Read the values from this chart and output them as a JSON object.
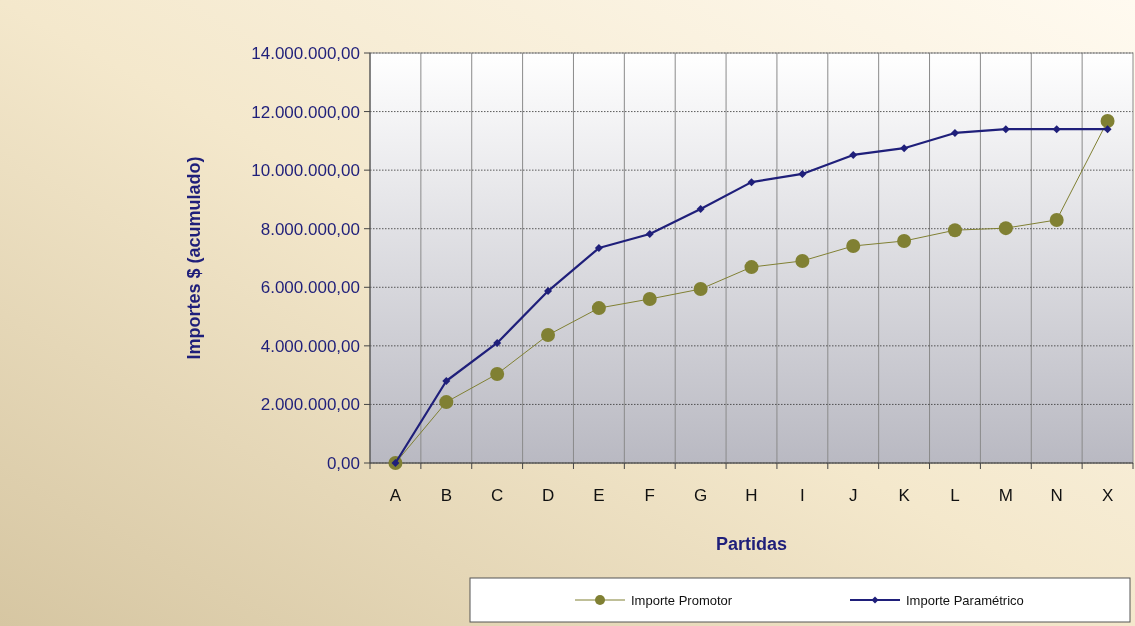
{
  "chart_data": {
    "type": "line",
    "xlabel": "Partidas",
    "ylabel": "Importes $ (acumulado)",
    "categories": [
      "A",
      "B",
      "C",
      "D",
      "E",
      "F",
      "G",
      "H",
      "I",
      "J",
      "K",
      "L",
      "M",
      "N",
      "X"
    ],
    "series": [
      {
        "name": "Importe Promotor",
        "color": "#808033",
        "marker": "circle",
        "values": [
          0,
          2080000,
          3040000,
          4370000,
          5290000,
          5600000,
          5940000,
          6690000,
          6900000,
          7410000,
          7580000,
          7950000,
          8020000,
          8300000,
          11680000
        ]
      },
      {
        "name": "Importe Paramétrico",
        "color": "#1f1f7a",
        "marker": "diamond",
        "values": [
          0,
          2800000,
          4100000,
          5870000,
          7340000,
          7820000,
          8670000,
          9590000,
          9870000,
          10520000,
          10750000,
          11270000,
          11400000,
          11400000,
          11400000
        ]
      }
    ],
    "ylim": [
      0,
      14000000
    ],
    "yticks": [
      {
        "value": 0,
        "label": "0,00"
      },
      {
        "value": 2000000,
        "label": "2.000.000,00"
      },
      {
        "value": 4000000,
        "label": "4.000.000,00"
      },
      {
        "value": 6000000,
        "label": "6.000.000,00"
      },
      {
        "value": 8000000,
        "label": "8.000.000,00"
      },
      {
        "value": 10000000,
        "label": "10.000.000,00"
      },
      {
        "value": 12000000,
        "label": "12.000.000,00"
      },
      {
        "value": 14000000,
        "label": "14.000.000,00"
      }
    ],
    "grid": true,
    "legend": "bottom"
  }
}
